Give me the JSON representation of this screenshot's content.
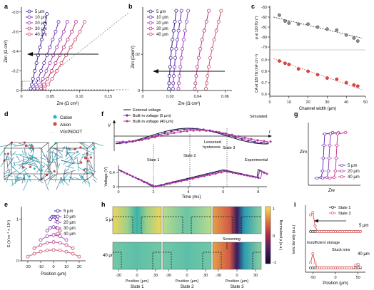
{
  "colors": {
    "s5": "#3b1f8f",
    "s10": "#6a2fb0",
    "s20": "#9a3ab7",
    "s30": "#b8357f",
    "s40": "#d14b6a",
    "ext": "#111111",
    "red": "#e04545",
    "cyan": "#2ab7c9",
    "pink": "#c43a8e"
  },
  "panel_labels": {
    "a": "a",
    "b": "b",
    "c": "c",
    "d": "d",
    "e": "e",
    "f": "f",
    "g": "g",
    "h": "h",
    "i": "i"
  },
  "series_names": [
    "5 μm",
    "10 μm",
    "20 μm",
    "30 μm",
    "40 μm"
  ],
  "series_names_short": [
    "5 μm",
    "20 μm",
    "40 μm"
  ],
  "chart_data": [
    {
      "panel": "a",
      "type": "line",
      "xlabel": "Zre (Ω cm²)",
      "ylabel": "Zim (Ω cm²)",
      "x_ticks": [
        "0",
        "0.05",
        "0.10",
        "0.15"
      ],
      "y_ticks": [
        "-0.8",
        "-0.6",
        "-0.4",
        "-0.2",
        "0"
      ],
      "xlim": [
        0,
        0.16
      ],
      "ylim": [
        -0.85,
        0
      ],
      "series": [
        {
          "name": "5 μm",
          "x": [
            0.016,
            0.018,
            0.02,
            0.023,
            0.026,
            0.029,
            0.032,
            0.035,
            0.038,
            0.041,
            0.044
          ],
          "y": [
            -0.02,
            -0.06,
            -0.12,
            -0.2,
            -0.28,
            -0.36,
            -0.44,
            -0.52,
            -0.6,
            -0.68,
            -0.78
          ]
        },
        {
          "name": "10 μm",
          "x": [
            0.022,
            0.025,
            0.029,
            0.034,
            0.039,
            0.044,
            0.049,
            0.054,
            0.059,
            0.064
          ],
          "y": [
            -0.02,
            -0.06,
            -0.12,
            -0.2,
            -0.28,
            -0.36,
            -0.44,
            -0.52,
            -0.6,
            -0.7
          ]
        },
        {
          "name": "20 μm",
          "x": [
            0.028,
            0.032,
            0.037,
            0.043,
            0.049,
            0.055,
            0.061,
            0.067,
            0.073,
            0.079
          ],
          "y": [
            -0.02,
            -0.06,
            -0.12,
            -0.2,
            -0.28,
            -0.36,
            -0.44,
            -0.52,
            -0.6,
            -0.7
          ]
        },
        {
          "name": "30 μm",
          "x": [
            0.034,
            0.039,
            0.045,
            0.052,
            0.059,
            0.066,
            0.073,
            0.08,
            0.087,
            0.094
          ],
          "y": [
            -0.02,
            -0.06,
            -0.12,
            -0.2,
            -0.28,
            -0.36,
            -0.44,
            -0.52,
            -0.6,
            -0.7
          ]
        },
        {
          "name": "40 μm",
          "x": [
            0.04,
            0.046,
            0.053,
            0.061,
            0.069,
            0.077,
            0.085,
            0.093,
            0.101,
            0.109
          ],
          "y": [
            -0.02,
            -0.06,
            -0.12,
            -0.2,
            -0.28,
            -0.36,
            -0.44,
            -0.52,
            -0.6,
            -0.7
          ]
        }
      ]
    },
    {
      "panel": "b",
      "type": "line",
      "xlabel": "Zre (Ω cm²)",
      "ylabel": "Zim (Ω cm²)",
      "x_ticks": [
        "0",
        "0.02",
        "0.04",
        "0.06"
      ],
      "y_ticks": [
        "-0.02",
        "0"
      ],
      "xlim": [
        0,
        0.065
      ],
      "ylim": [
        -0.046,
        0
      ],
      "series": [
        {
          "name": "5 μm",
          "x": [
            0.019,
            0.0192,
            0.0195,
            0.0199,
            0.0204,
            0.021,
            0.0217,
            0.0225,
            0.0234,
            0.0244
          ],
          "y": [
            -0.001,
            -0.004,
            -0.008,
            -0.013,
            -0.018,
            -0.023,
            -0.028,
            -0.033,
            -0.038,
            -0.044
          ]
        },
        {
          "name": "10 μm",
          "x": [
            0.022,
            0.0222,
            0.0226,
            0.0231,
            0.0237,
            0.0244,
            0.0252,
            0.0261,
            0.0271,
            0.0282
          ],
          "y": [
            -0.001,
            -0.004,
            -0.008,
            -0.013,
            -0.018,
            -0.023,
            -0.028,
            -0.033,
            -0.038,
            -0.044
          ]
        },
        {
          "name": "20 μm",
          "x": [
            0.026,
            0.0263,
            0.0268,
            0.0274,
            0.0281,
            0.0289,
            0.0298,
            0.0308,
            0.0319,
            0.0331
          ],
          "y": [
            -0.001,
            -0.004,
            -0.008,
            -0.013,
            -0.018,
            -0.023,
            -0.028,
            -0.033,
            -0.038,
            -0.044
          ]
        },
        {
          "name": "30 μm",
          "x": [
            0.038,
            0.0384,
            0.039,
            0.0398,
            0.0408,
            0.042,
            0.0433,
            0.0448,
            0.0464,
            0.0481
          ],
          "y": [
            -0.001,
            -0.004,
            -0.008,
            -0.013,
            -0.018,
            -0.023,
            -0.028,
            -0.033,
            -0.038,
            -0.044
          ]
        },
        {
          "name": "40 μm",
          "x": [
            0.046,
            0.0465,
            0.0472,
            0.0481,
            0.0492,
            0.0505,
            0.052,
            0.0536,
            0.0553,
            0.0571
          ],
          "y": [
            -0.001,
            -0.004,
            -0.008,
            -0.013,
            -0.018,
            -0.023,
            -0.028,
            -0.033,
            -0.038,
            -0.044
          ]
        }
      ]
    },
    {
      "panel": "c-top",
      "type": "scatter",
      "ylabel": "φ at 120 Hz (°)",
      "y_ticks": [
        "-83",
        "-82",
        "-81",
        "-80",
        "-79"
      ],
      "ylim": [
        -83,
        -79
      ],
      "xlim": [
        0,
        50
      ],
      "x": [
        5,
        8,
        10,
        15,
        20,
        25,
        30,
        35,
        40,
        44,
        46
      ],
      "y": [
        -82.2,
        -81.6,
        -81.4,
        -81.3,
        -81.3,
        -81.0,
        -80.8,
        -80.7,
        -80.2,
        -79.9,
        -79.6
      ],
      "trend": [
        [
          2,
          -82.0
        ],
        [
          48,
          -79.9
        ]
      ]
    },
    {
      "panel": "c-bottom",
      "type": "scatter",
      "xlabel": "Channel width (μm)",
      "ylabel": "CA at 120 Hz (mF cm⁻²)",
      "x_ticks": [
        "0",
        "10",
        "20",
        "30",
        "40",
        "50"
      ],
      "y_ticks": [
        "0.9",
        "0.8",
        "0.7",
        "0.6"
      ],
      "xlim": [
        0,
        50
      ],
      "ylim": [
        0.6,
        0.95
      ],
      "x": [
        5,
        8,
        10,
        15,
        20,
        25,
        30,
        35,
        40,
        44,
        46
      ],
      "y": [
        0.89,
        0.87,
        0.86,
        0.82,
        0.8,
        0.77,
        0.74,
        0.73,
        0.7,
        0.68,
        0.67
      ],
      "trend": [
        [
          2,
          0.91
        ],
        [
          48,
          0.64
        ]
      ]
    },
    {
      "panel": "e",
      "type": "line",
      "xlabel": "Position (μm)",
      "ylabel": "E (V m⁻¹ × 10⁴)",
      "x_ticks": [
        "-20",
        "-10",
        "0",
        "10",
        "20"
      ],
      "y_ticks": [
        "0",
        "1"
      ],
      "xlim": [
        -25,
        25
      ],
      "ylim": [
        0,
        1.3
      ],
      "series": [
        {
          "name": "5 μm",
          "x": [
            -2.5,
            -1.25,
            0,
            1.25,
            2.5
          ],
          "y": [
            1.0,
            1.05,
            1.06,
            1.05,
            1.0
          ]
        },
        {
          "name": "10 μm",
          "x": [
            -5,
            -2.5,
            0,
            2.5,
            5
          ],
          "y": [
            0.72,
            0.79,
            0.81,
            0.79,
            0.72
          ]
        },
        {
          "name": "20 μm",
          "x": [
            -10,
            -5,
            0,
            5,
            10
          ],
          "y": [
            0.5,
            0.59,
            0.62,
            0.59,
            0.5
          ]
        },
        {
          "name": "30 μm",
          "x": [
            -15,
            -10,
            -5,
            0,
            5,
            10,
            15
          ],
          "y": [
            0.3,
            0.38,
            0.43,
            0.45,
            0.43,
            0.38,
            0.3
          ]
        },
        {
          "name": "40 μm",
          "x": [
            -20,
            -15,
            -10,
            -5,
            0,
            5,
            10,
            15,
            20
          ],
          "y": [
            0.1,
            0.17,
            0.22,
            0.25,
            0.26,
            0.25,
            0.22,
            0.17,
            0.1
          ]
        }
      ]
    },
    {
      "panel": "f",
      "type": "line",
      "xlabel": "Time (ms)",
      "ylabel": "Voltage (V)",
      "x_ticks": [
        "0",
        "2",
        "4",
        "6",
        "8"
      ],
      "y_ticks": [
        "0",
        "0.4"
      ],
      "xlim": [
        0,
        8.5
      ],
      "series": [
        {
          "name": "External voltage"
        },
        {
          "name": "Built-in voltage (5 μm)"
        },
        {
          "name": "Built-in voltage (40 μm)"
        }
      ]
    },
    {
      "panel": "i",
      "type": "line",
      "xlabel": "Position (μm)",
      "ylabel": "Ionic density (a.u.)",
      "x_ticks": [
        "-50",
        "0",
        "50"
      ],
      "series": [
        {
          "name": "State 1"
        },
        {
          "name": "State 3"
        }
      ]
    }
  ],
  "panel_f": {
    "legend": [
      "External voltage",
      "Built-in voltage (5 μm)",
      "Built-in voltage (40 μm)"
    ],
    "simulated": "Simulated",
    "experimental": "Experimental",
    "state1": "State 1",
    "state2": "State 2",
    "state3": "State 3",
    "lessened": "Lessened",
    "hysteresis": "hysteresis",
    "v_label": "V",
    "t_label": "t",
    "y_label": "Voltage (V)",
    "x_label": "Time (ms)"
  },
  "panel_d": {
    "cation": "Cation",
    "anion": "Anion",
    "vg": "VG/PEDOT"
  },
  "panel_g": {
    "xlabel": "Zre",
    "ylabel": "Zim"
  },
  "panel_h": {
    "row_labels": [
      "5 μm",
      "40 μm"
    ],
    "col_labels": [
      "State 1",
      "State 2",
      "State 3"
    ],
    "x_ticks": [
      "-30",
      "0",
      "30"
    ],
    "xlabel": "Position (μm)",
    "cbar_label": "Normalized ρ (a.u.)",
    "cbar_ticks": [
      "1",
      "0",
      "-1"
    ],
    "screening": "Screening"
  },
  "panel_i": {
    "legend": [
      "State 1",
      "State 3"
    ],
    "insufficient": "Insufficient storage",
    "stuck": "Stuck ions",
    "w5": "5 μm",
    "w40": "40 μm"
  }
}
